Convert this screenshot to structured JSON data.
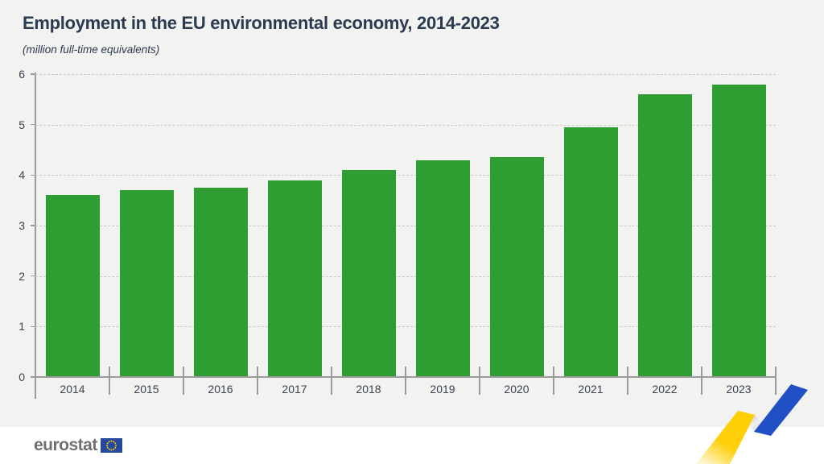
{
  "header": {
    "title": "Employment in the EU environmental economy, 2014-2023",
    "subtitle": "(million full-time equivalents)"
  },
  "chart_data": {
    "type": "bar",
    "categories": [
      "2014",
      "2015",
      "2016",
      "2017",
      "2018",
      "2019",
      "2020",
      "2021",
      "2022",
      "2023"
    ],
    "values": [
      3.6,
      3.7,
      3.75,
      3.9,
      4.1,
      4.3,
      4.35,
      4.95,
      5.6,
      5.8
    ],
    "title": "Employment in the EU environmental economy, 2014-2023",
    "subtitle": "(million full-time equivalents)",
    "xlabel": "",
    "ylabel": "",
    "ylim": [
      0,
      6
    ],
    "yticks": [
      0,
      1,
      2,
      3,
      4,
      5,
      6
    ],
    "grid": "horizontal-dashed",
    "legend": "none",
    "bar_color": "#2f9e32"
  },
  "footer": {
    "brand": "eurostat"
  },
  "icons": {
    "eu_flag": "eu-flag-icon",
    "ribbon": "eurostat-ribbon-graphic"
  },
  "colors": {
    "background": "#f2f2f0",
    "page": "#ffffff",
    "bar": "#2f9e32",
    "title_text": "#2b3a50",
    "axis_line": "#9b9b9b",
    "grid_line": "#c9c9c6",
    "tick_label": "#3a4150",
    "logo_text": "#6e7073",
    "eu_flag_blue": "#26479e",
    "star_yellow": "#ffcc00",
    "ribbon_yellow": "#ffce00",
    "ribbon_blue": "#2150c4"
  }
}
